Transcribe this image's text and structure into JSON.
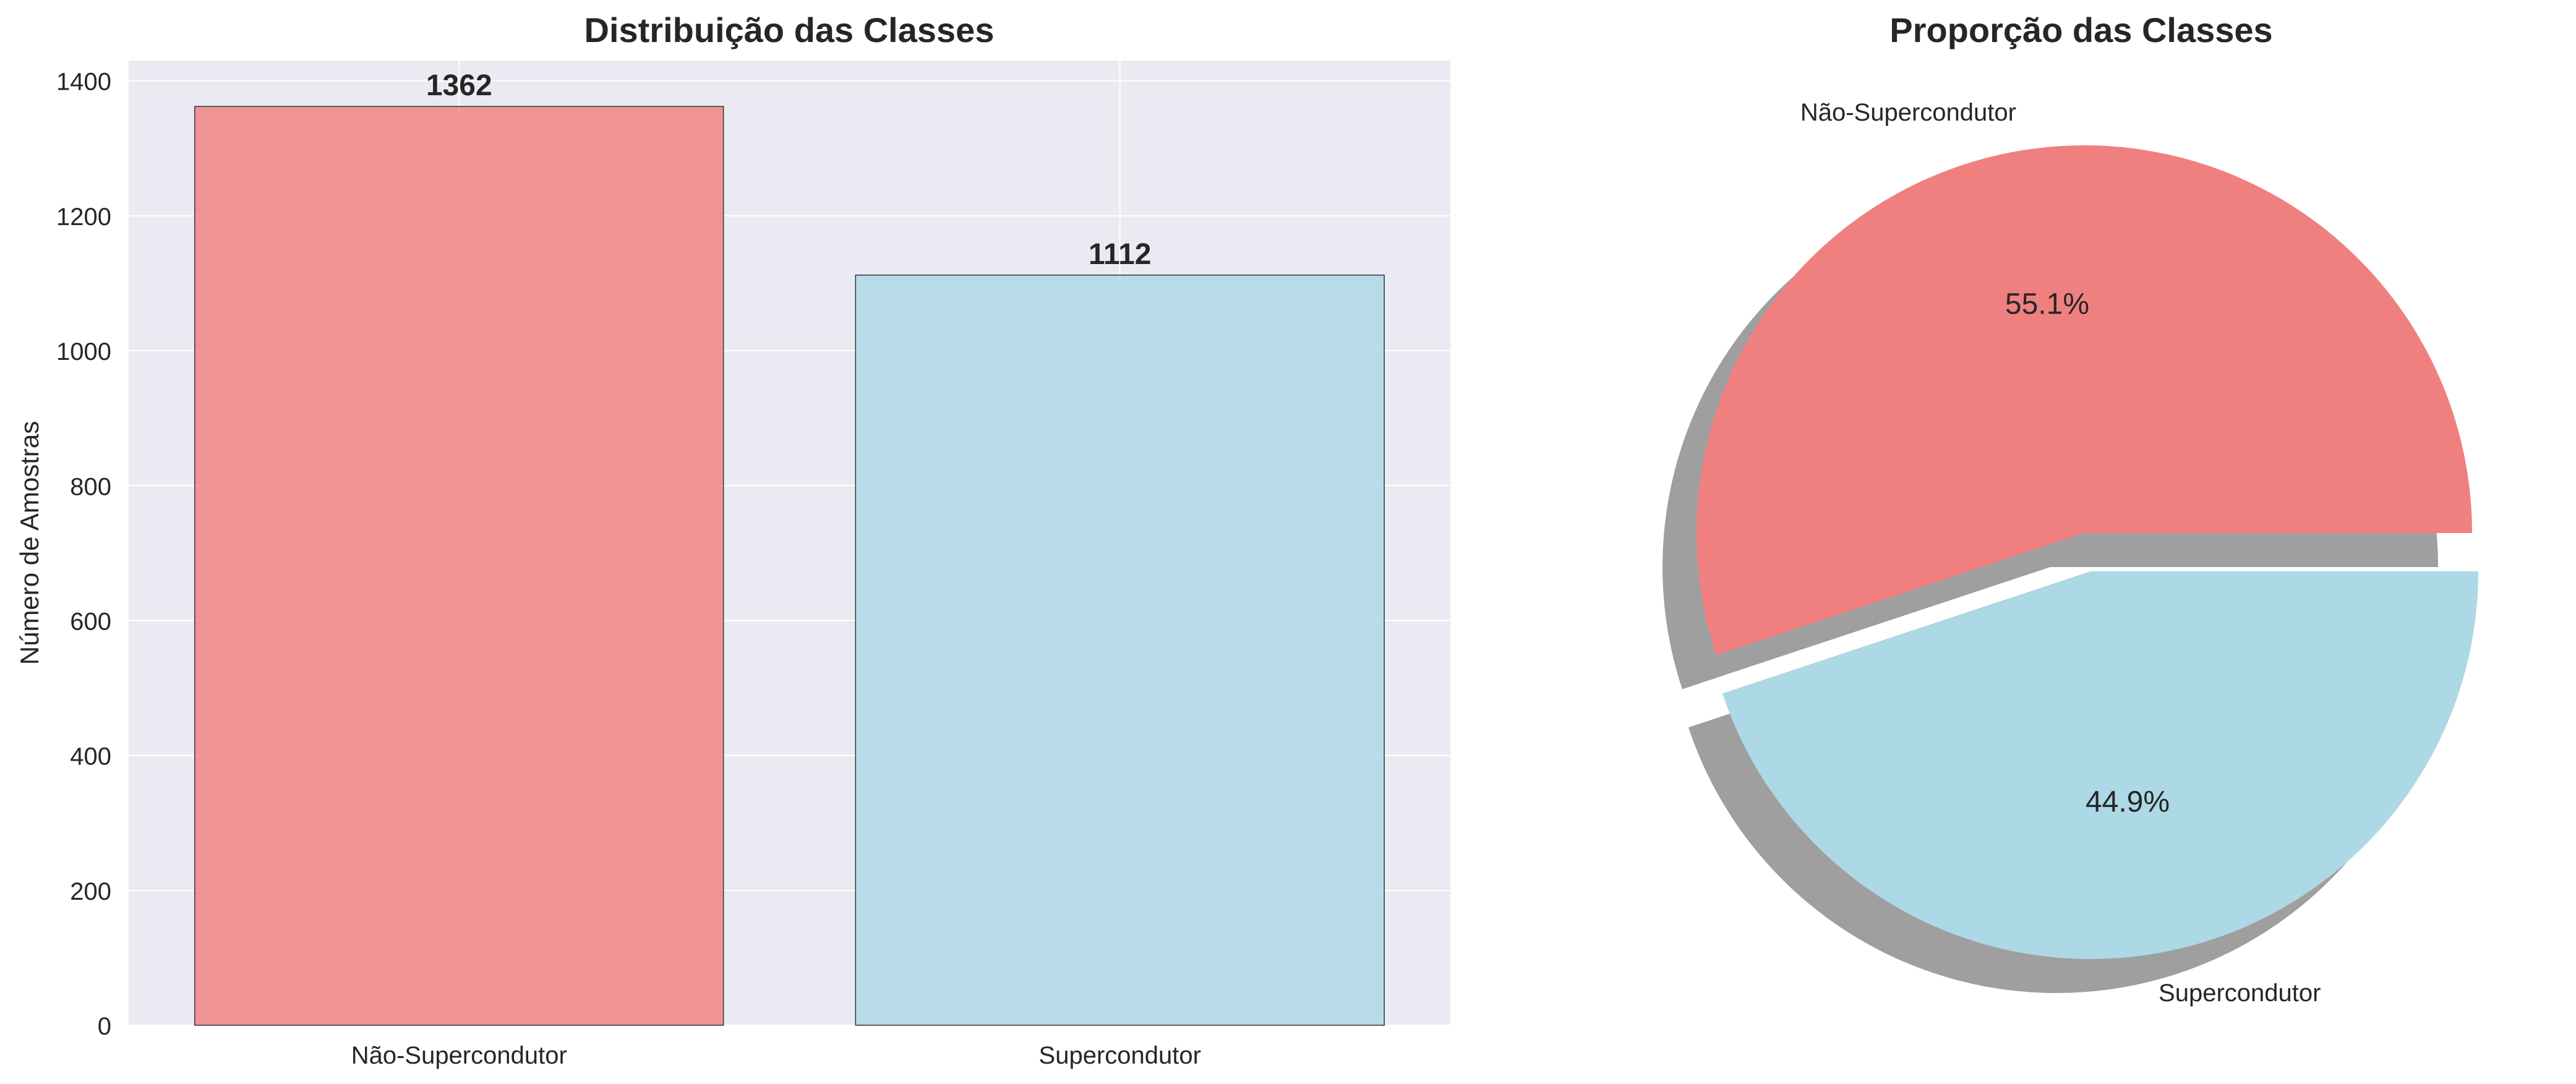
{
  "chart_data": [
    {
      "type": "bar",
      "title": "Distribuição das Classes",
      "xlabel": "",
      "ylabel": "Número de Amostras",
      "categories": [
        "Não-Supercondutor",
        "Supercondutor"
      ],
      "values": [
        1362,
        1112
      ],
      "data_labels": [
        "1362",
        "1112"
      ],
      "ylim": [
        0,
        1430
      ],
      "yticks": [
        0,
        200,
        400,
        600,
        800,
        1000,
        1200,
        1400
      ],
      "ytick_labels": [
        "0",
        "200",
        "400",
        "600",
        "800",
        "1000",
        "1200",
        "1400"
      ],
      "colors": [
        "#f08080",
        "#add8e6"
      ],
      "grid": true
    },
    {
      "type": "pie",
      "title": "Proporção das Classes",
      "labels": [
        "Não-Supercondutor",
        "Supercondutor"
      ],
      "values": [
        55.1,
        44.9
      ],
      "autopct_labels": [
        "55.1%",
        "44.9%"
      ],
      "colors": [
        "#f08080",
        "#add8e6"
      ],
      "explode": [
        0,
        0.1
      ],
      "shadow": true,
      "start_angle": 0
    }
  ],
  "style": {
    "axes_background": "#eaeaf2",
    "grid_color": "#ffffff",
    "text_color": "#262626",
    "shadow_color": "#9a9a9a"
  }
}
